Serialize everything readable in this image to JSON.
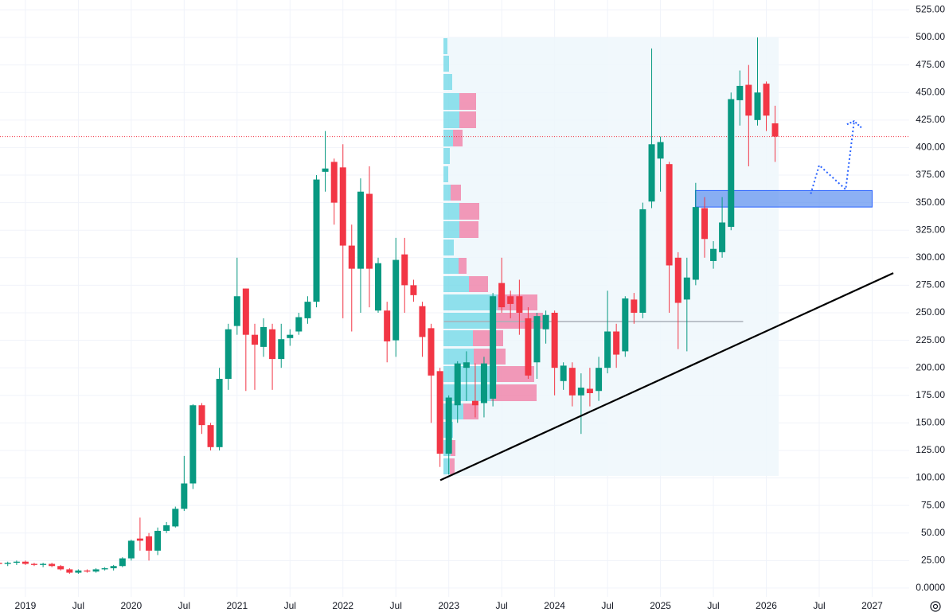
{
  "chart_data": {
    "type": "candlestick",
    "up_color": "#089981",
    "down_color": "#f23645",
    "grid": true,
    "xlim": [
      2018.76,
      2027.35
    ],
    "ylim": [
      -8,
      534
    ],
    "xticks": [
      2019,
      {
        "value": 2019.5,
        "label": "Jul"
      },
      2020,
      {
        "value": 2020.5,
        "label": "Jul"
      },
      2021,
      {
        "value": 2021.5,
        "label": "Jul"
      },
      2022,
      {
        "value": 2022.5,
        "label": "Jul"
      },
      2023,
      {
        "value": 2023.5,
        "label": "Jul"
      },
      2024,
      {
        "value": 2024.5,
        "label": "Jul"
      },
      2025,
      {
        "value": 2025.5,
        "label": "Jul"
      },
      2026,
      {
        "value": 2026.5,
        "label": "Jul"
      },
      2027
    ],
    "yticks": [
      {
        "value": 0,
        "label": "0.0000"
      },
      {
        "value": 25,
        "label": "25.00"
      },
      {
        "value": 50,
        "label": "50.00"
      },
      {
        "value": 75,
        "label": "75.00"
      },
      {
        "value": 100,
        "label": "100.00"
      },
      {
        "value": 125,
        "label": "125.00"
      },
      {
        "value": 150,
        "label": "150.00"
      },
      {
        "value": 175,
        "label": "175.00"
      },
      {
        "value": 200,
        "label": "200.00"
      },
      {
        "value": 225,
        "label": "225.00"
      },
      {
        "value": 250,
        "label": "250.00"
      },
      {
        "value": 275,
        "label": "275.00"
      },
      {
        "value": 300,
        "label": "300.00"
      },
      {
        "value": 325,
        "label": "325.00"
      },
      {
        "value": 350,
        "label": "350.00"
      },
      {
        "value": 375,
        "label": "375.00"
      },
      {
        "value": 400,
        "label": "400.00"
      },
      {
        "value": 425,
        "label": "425.00"
      },
      {
        "value": 450,
        "label": "450.00"
      },
      {
        "value": 475,
        "label": "475.00"
      },
      {
        "value": 500,
        "label": "500.00"
      },
      {
        "value": 525,
        "label": "525.00"
      }
    ],
    "x": [
      2018.75,
      2018.833,
      2018.917,
      2019.0,
      2019.083,
      2019.167,
      2019.25,
      2019.333,
      2019.417,
      2019.5,
      2019.583,
      2019.667,
      2019.75,
      2019.833,
      2019.917,
      2020.0,
      2020.083,
      2020.167,
      2020.25,
      2020.333,
      2020.417,
      2020.5,
      2020.583,
      2020.667,
      2020.75,
      2020.833,
      2020.917,
      2021.0,
      2021.083,
      2021.167,
      2021.25,
      2021.333,
      2021.417,
      2021.5,
      2021.583,
      2021.667,
      2021.75,
      2021.833,
      2021.917,
      2022.0,
      2022.083,
      2022.167,
      2022.25,
      2022.333,
      2022.417,
      2022.5,
      2022.583,
      2022.667,
      2022.75,
      2022.833,
      2022.917,
      2023.0,
      2023.083,
      2023.167,
      2023.25,
      2023.333,
      2023.417,
      2023.5,
      2023.583,
      2023.667,
      2023.75,
      2023.833,
      2023.917,
      2024.0,
      2024.083,
      2024.167,
      2024.25,
      2024.333,
      2024.417,
      2024.5,
      2024.583,
      2024.667,
      2024.75,
      2024.833,
      2024.917,
      2025.0,
      2025.083,
      2025.167,
      2025.25,
      2025.333,
      2025.417,
      2025.5,
      2025.583,
      2025.667,
      2025.75,
      2025.833,
      2025.917,
      2026.0,
      2026.083
    ],
    "open": [
      23,
      22,
      23,
      24,
      22,
      21,
      22,
      20,
      17,
      14,
      16,
      15,
      17,
      18,
      20,
      27,
      45,
      47,
      34,
      52,
      56,
      72,
      95,
      166,
      148,
      128,
      190,
      238,
      272,
      230,
      219,
      235,
      208,
      227,
      233,
      245,
      260,
      378,
      387,
      382,
      311,
      290,
      358,
      252,
      252,
      225,
      303,
      275,
      256,
      236,
      197,
      122,
      166,
      200,
      170,
      168,
      172,
      277,
      265,
      265,
      245,
      205,
      235,
      250,
      188,
      200,
      175,
      181,
      179,
      200,
      233,
      215,
      262,
      250,
      351,
      390,
      385,
      300,
      262,
      280,
      345,
      297,
      305,
      328,
      443,
      457,
      425,
      458,
      422
    ],
    "high": [
      25,
      24,
      25,
      25,
      23,
      23,
      23,
      21,
      18,
      17,
      17,
      18,
      19,
      21,
      28,
      44,
      64,
      50,
      55,
      60,
      74,
      120,
      167,
      168,
      150,
      200,
      240,
      300,
      272,
      240,
      245,
      240,
      240,
      235,
      250,
      265,
      375,
      415,
      390,
      403,
      330,
      372,
      383,
      300,
      260,
      318,
      318,
      280,
      260,
      240,
      200,
      175,
      206,
      215,
      204,
      210,
      268,
      300,
      270,
      280,
      255,
      250,
      252,
      252,
      205,
      205,
      195,
      200,
      210,
      270,
      240,
      265,
      268,
      350,
      490,
      410,
      387,
      305,
      300,
      368,
      355,
      315,
      355,
      450,
      470,
      475,
      500,
      460,
      438
    ],
    "low": [
      21,
      20,
      21,
      21,
      20,
      19,
      19,
      16,
      13,
      13,
      14,
      14,
      16,
      16,
      19,
      25,
      34,
      25,
      30,
      50,
      55,
      70,
      90,
      140,
      125,
      125,
      180,
      230,
      179,
      180,
      210,
      180,
      200,
      220,
      230,
      240,
      255,
      360,
      330,
      245,
      233,
      250,
      255,
      250,
      205,
      210,
      250,
      260,
      210,
      150,
      110,
      103,
      150,
      170,
      155,
      155,
      165,
      250,
      245,
      230,
      190,
      190,
      222,
      175,
      180,
      165,
      140,
      165,
      170,
      195,
      200,
      210,
      240,
      245,
      345,
      360,
      250,
      217,
      215,
      275,
      300,
      290,
      300,
      325,
      420,
      383,
      420,
      415,
      387
    ],
    "close": [
      22,
      23,
      24,
      22,
      21,
      22,
      20,
      17,
      14,
      16,
      15,
      17,
      18,
      20,
      27,
      43,
      43,
      34,
      52,
      57,
      72,
      95,
      166,
      148,
      128,
      190,
      235,
      265,
      230,
      221,
      237,
      208,
      226,
      230,
      246,
      260,
      371,
      381,
      350,
      311,
      290,
      360,
      290,
      295,
      224,
      298,
      275,
      266,
      228,
      193,
      122,
      173,
      204,
      205,
      166,
      204,
      265,
      255,
      258,
      250,
      193,
      247,
      248,
      200,
      202,
      175,
      182,
      177,
      200,
      233,
      212,
      263,
      250,
      344,
      403,
      405,
      293,
      259,
      282,
      346,
      317,
      308,
      332,
      444,
      456,
      429,
      450,
      429,
      410
    ],
    "last_price": 410,
    "level_line": 242,
    "trend_line": {
      "x": [
        2022.92,
        2027.2
      ],
      "y": [
        98,
        286
      ]
    },
    "zone": {
      "x": [
        2025.33,
        2027.0
      ],
      "y": [
        346,
        361
      ],
      "color": "#5b8ff0"
    },
    "projection": {
      "x": [
        2026.42,
        2026.5,
        2026.75,
        2026.83
      ],
      "y": [
        358,
        384,
        362,
        424
      ]
    }
  }
}
